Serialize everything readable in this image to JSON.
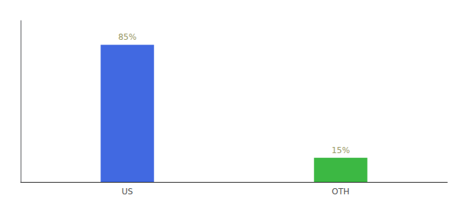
{
  "chart_data": {
    "type": "bar",
    "categories": [
      "US",
      "OTH"
    ],
    "values": [
      85,
      15
    ],
    "value_labels": [
      "85%",
      "15%"
    ],
    "colors": [
      "#4169e1",
      "#3cb843"
    ],
    "ylim": [
      0,
      100
    ],
    "data_labels": true,
    "tick_labels": "x",
    "grid": false
  }
}
